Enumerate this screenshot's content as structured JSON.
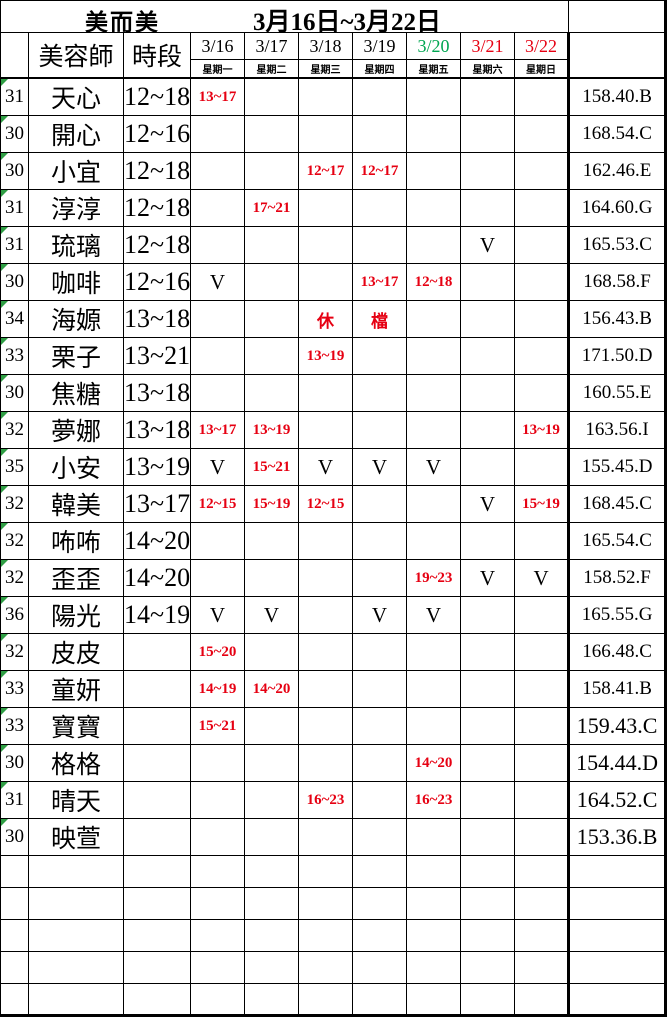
{
  "title": {
    "shop": "美而美",
    "range": "3月16日~3月22日"
  },
  "colors": {
    "red": "#e60012",
    "green": "#00a651",
    "flag_triangle": "#2f9e44"
  },
  "icons": {
    "cell_flag": "green-corner-triangle"
  },
  "header": {
    "staff": "美容師",
    "slot": "時段",
    "days": [
      {
        "date": "3/16",
        "weekday": "星期一",
        "color": "black"
      },
      {
        "date": "3/17",
        "weekday": "星期二",
        "color": "black"
      },
      {
        "date": "3/18",
        "weekday": "星期三",
        "color": "black"
      },
      {
        "date": "3/19",
        "weekday": "星期四",
        "color": "black"
      },
      {
        "date": "3/20",
        "weekday": "星期五",
        "color": "green"
      },
      {
        "date": "3/21",
        "weekday": "星期六",
        "color": "red"
      },
      {
        "date": "3/22",
        "weekday": "星期日",
        "color": "red"
      }
    ]
  },
  "rows": [
    {
      "num": "31",
      "name": "天心",
      "slot": "12~18",
      "days": [
        {
          "t": "13~17",
          "k": "time"
        },
        null,
        null,
        null,
        null,
        null,
        null
      ],
      "code": "158.40.B",
      "big": false
    },
    {
      "num": "30",
      "name": "開心",
      "slot": "12~16",
      "days": [
        null,
        null,
        null,
        null,
        null,
        null,
        null
      ],
      "code": "168.54.C",
      "big": false
    },
    {
      "num": "30",
      "name": "小宜",
      "slot": "12~18",
      "days": [
        null,
        null,
        {
          "t": "12~17",
          "k": "time"
        },
        {
          "t": "12~17",
          "k": "time"
        },
        null,
        null,
        null
      ],
      "code": "162.46.E",
      "big": false
    },
    {
      "num": "31",
      "name": "淳淳",
      "slot": "12~18",
      "days": [
        null,
        {
          "t": "17~21",
          "k": "time"
        },
        null,
        null,
        null,
        null,
        null
      ],
      "code": "164.60.G",
      "big": false
    },
    {
      "num": "31",
      "name": "琉璃",
      "slot": "12~18",
      "days": [
        null,
        null,
        null,
        null,
        null,
        {
          "t": "V",
          "k": "v"
        },
        null
      ],
      "code": "165.53.C",
      "big": false
    },
    {
      "num": "30",
      "name": "咖啡",
      "slot": "12~16",
      "days": [
        {
          "t": "V",
          "k": "v"
        },
        null,
        null,
        {
          "t": "13~17",
          "k": "time"
        },
        {
          "t": "12~18",
          "k": "time"
        },
        null,
        null
      ],
      "code": "168.58.F",
      "big": false
    },
    {
      "num": "34",
      "name": "海嫄",
      "slot": "13~18",
      "days": [
        null,
        null,
        {
          "t": "休",
          "k": "rest"
        },
        {
          "t": "檔",
          "k": "rest"
        },
        null,
        null,
        null
      ],
      "code": "156.43.B",
      "big": false
    },
    {
      "num": "33",
      "name": "栗子",
      "slot": "13~21",
      "days": [
        null,
        null,
        {
          "t": "13~19",
          "k": "time"
        },
        null,
        null,
        null,
        null
      ],
      "code": "171.50.D",
      "big": false
    },
    {
      "num": "30",
      "name": "焦糖",
      "slot": "13~18",
      "days": [
        null,
        null,
        null,
        null,
        null,
        null,
        null
      ],
      "code": "160.55.E",
      "big": false
    },
    {
      "num": "32",
      "name": "夢娜",
      "slot": "13~18",
      "days": [
        {
          "t": "13~17",
          "k": "time"
        },
        {
          "t": "13~19",
          "k": "time"
        },
        null,
        null,
        null,
        null,
        {
          "t": "13~19",
          "k": "time"
        }
      ],
      "code": "163.56.I",
      "big": false
    },
    {
      "num": "35",
      "name": "小安",
      "slot": "13~19",
      "days": [
        {
          "t": "V",
          "k": "v"
        },
        {
          "t": "15~21",
          "k": "time"
        },
        {
          "t": "V",
          "k": "v"
        },
        {
          "t": "V",
          "k": "v"
        },
        {
          "t": "V",
          "k": "v"
        },
        null,
        null
      ],
      "code": "155.45.D",
      "big": false
    },
    {
      "num": "32",
      "name": "韓美",
      "slot": "13~17",
      "days": [
        {
          "t": "12~15",
          "k": "time"
        },
        {
          "t": "15~19",
          "k": "time"
        },
        {
          "t": "12~15",
          "k": "time"
        },
        null,
        null,
        {
          "t": "V",
          "k": "v"
        },
        {
          "t": "15~19",
          "k": "time"
        }
      ],
      "code": "168.45.C",
      "big": false
    },
    {
      "num": "32",
      "name": "咘咘",
      "slot": "14~20",
      "days": [
        null,
        null,
        null,
        null,
        null,
        null,
        null
      ],
      "code": "165.54.C",
      "big": false
    },
    {
      "num": "32",
      "name": "歪歪",
      "slot": "14~20",
      "days": [
        null,
        null,
        null,
        null,
        {
          "t": "19~23",
          "k": "time"
        },
        {
          "t": "V",
          "k": "v"
        },
        {
          "t": "V",
          "k": "v"
        }
      ],
      "code": "158.52.F",
      "big": false
    },
    {
      "num": "36",
      "name": "陽光",
      "slot": "14~19",
      "days": [
        {
          "t": "V",
          "k": "v"
        },
        {
          "t": "V",
          "k": "v"
        },
        null,
        {
          "t": "V",
          "k": "v"
        },
        {
          "t": "V",
          "k": "v"
        },
        null,
        null
      ],
      "code": "165.55.G",
      "big": false
    },
    {
      "num": "32",
      "name": "皮皮",
      "slot": "",
      "days": [
        {
          "t": "15~20",
          "k": "time"
        },
        null,
        null,
        null,
        null,
        null,
        null
      ],
      "code": "166.48.C",
      "big": false
    },
    {
      "num": "33",
      "name": "童妍",
      "slot": "",
      "days": [
        {
          "t": "14~19",
          "k": "time"
        },
        {
          "t": "14~20",
          "k": "time"
        },
        null,
        null,
        null,
        null,
        null
      ],
      "code": "158.41.B",
      "big": false
    },
    {
      "num": "33",
      "name": "寶寶",
      "slot": "",
      "days": [
        {
          "t": "15~21",
          "k": "time"
        },
        null,
        null,
        null,
        null,
        null,
        null
      ],
      "code": "159.43.C",
      "big": true
    },
    {
      "num": "30",
      "name": "格格",
      "slot": "",
      "days": [
        null,
        null,
        null,
        null,
        {
          "t": "14~20",
          "k": "time"
        },
        null,
        null
      ],
      "code": "154.44.D",
      "big": true
    },
    {
      "num": "31",
      "name": "晴天",
      "slot": "",
      "days": [
        null,
        null,
        {
          "t": "16~23",
          "k": "time"
        },
        null,
        {
          "t": "16~23",
          "k": "time"
        },
        null,
        null
      ],
      "code": "164.52.C",
      "big": true
    },
    {
      "num": "30",
      "name": "映萱",
      "slot": "",
      "days": [
        null,
        null,
        null,
        null,
        null,
        null,
        null
      ],
      "code": "153.36.B",
      "big": true
    }
  ],
  "empty_rows": 5
}
